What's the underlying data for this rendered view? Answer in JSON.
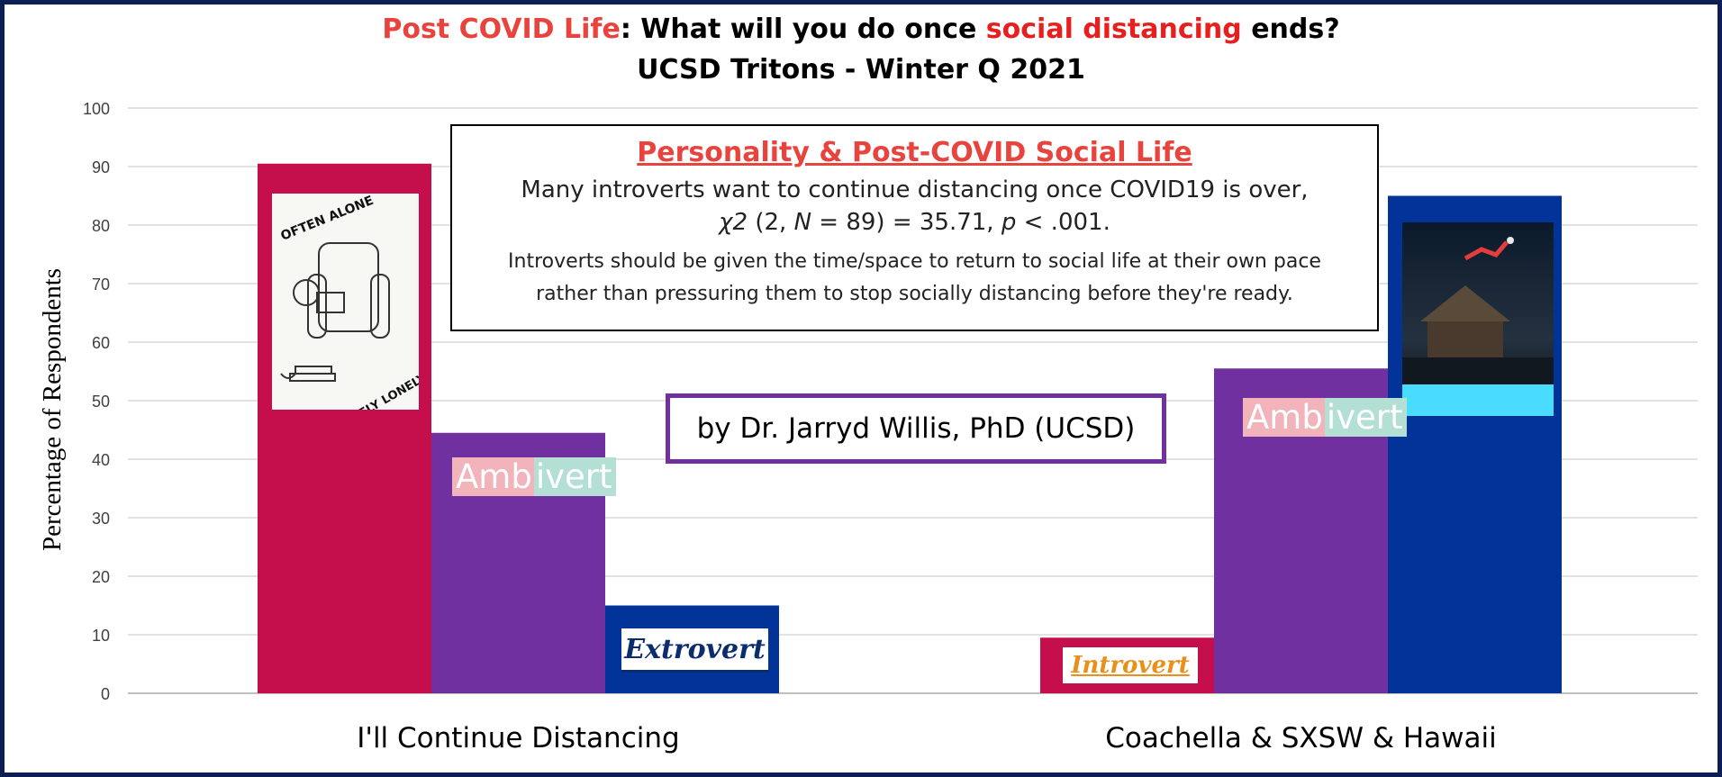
{
  "title": {
    "part1": "Post COVID Life",
    "part2": ": What will you do once ",
    "part3": "social distancing",
    "part4": " ends?",
    "line2": "UCSD Tritons - Winter Q 2021"
  },
  "callout": {
    "heading": "Personality & Post-COVID Social Life",
    "line1": "Many introverts want to continue distancing once COVID19 is over,",
    "stat_chi": "χ2",
    "stat_a": " (2, ",
    "stat_n": "N",
    "stat_b": " = 89) = 35.71, ",
    "stat_p": "p",
    "stat_c": " < .001.",
    "note1": "Introverts should be given the time/space to return to social life at their own pace",
    "note2": "rather than pressuring them to stop socially distancing before they're ready."
  },
  "byline": "by  Dr. Jarryd Willis, PhD (UCSD)",
  "labels": {
    "ambivert_a": "Amb",
    "ambivert_b": "ivert",
    "extrovert": "Extrovert",
    "introvert": "Introvert",
    "sign_top": "OFTEN ALONE",
    "sign_bottom": "RARELY LONELY"
  },
  "colors": {
    "introvert": "#c50f4d",
    "ambivert": "#7030a0",
    "extrovert": "#023399",
    "frame": "#0b1f55",
    "title_red": "#e8443d"
  },
  "chart_data": {
    "type": "bar",
    "categories": [
      "I'll Continue Distancing",
      "Coachella & SXSW & Hawaii"
    ],
    "series": [
      {
        "values": [
          90.5,
          9.5
        ]
      },
      {
        "values": [
          44.5,
          55.5
        ]
      },
      {
        "values": [
          15,
          85
        ]
      }
    ],
    "ylabel": "Percentage of Respondents",
    "ylim": [
      0,
      100
    ],
    "yticks": [
      0,
      10,
      20,
      30,
      40,
      50,
      60,
      70,
      80,
      90,
      100
    ],
    "grid": true
  }
}
